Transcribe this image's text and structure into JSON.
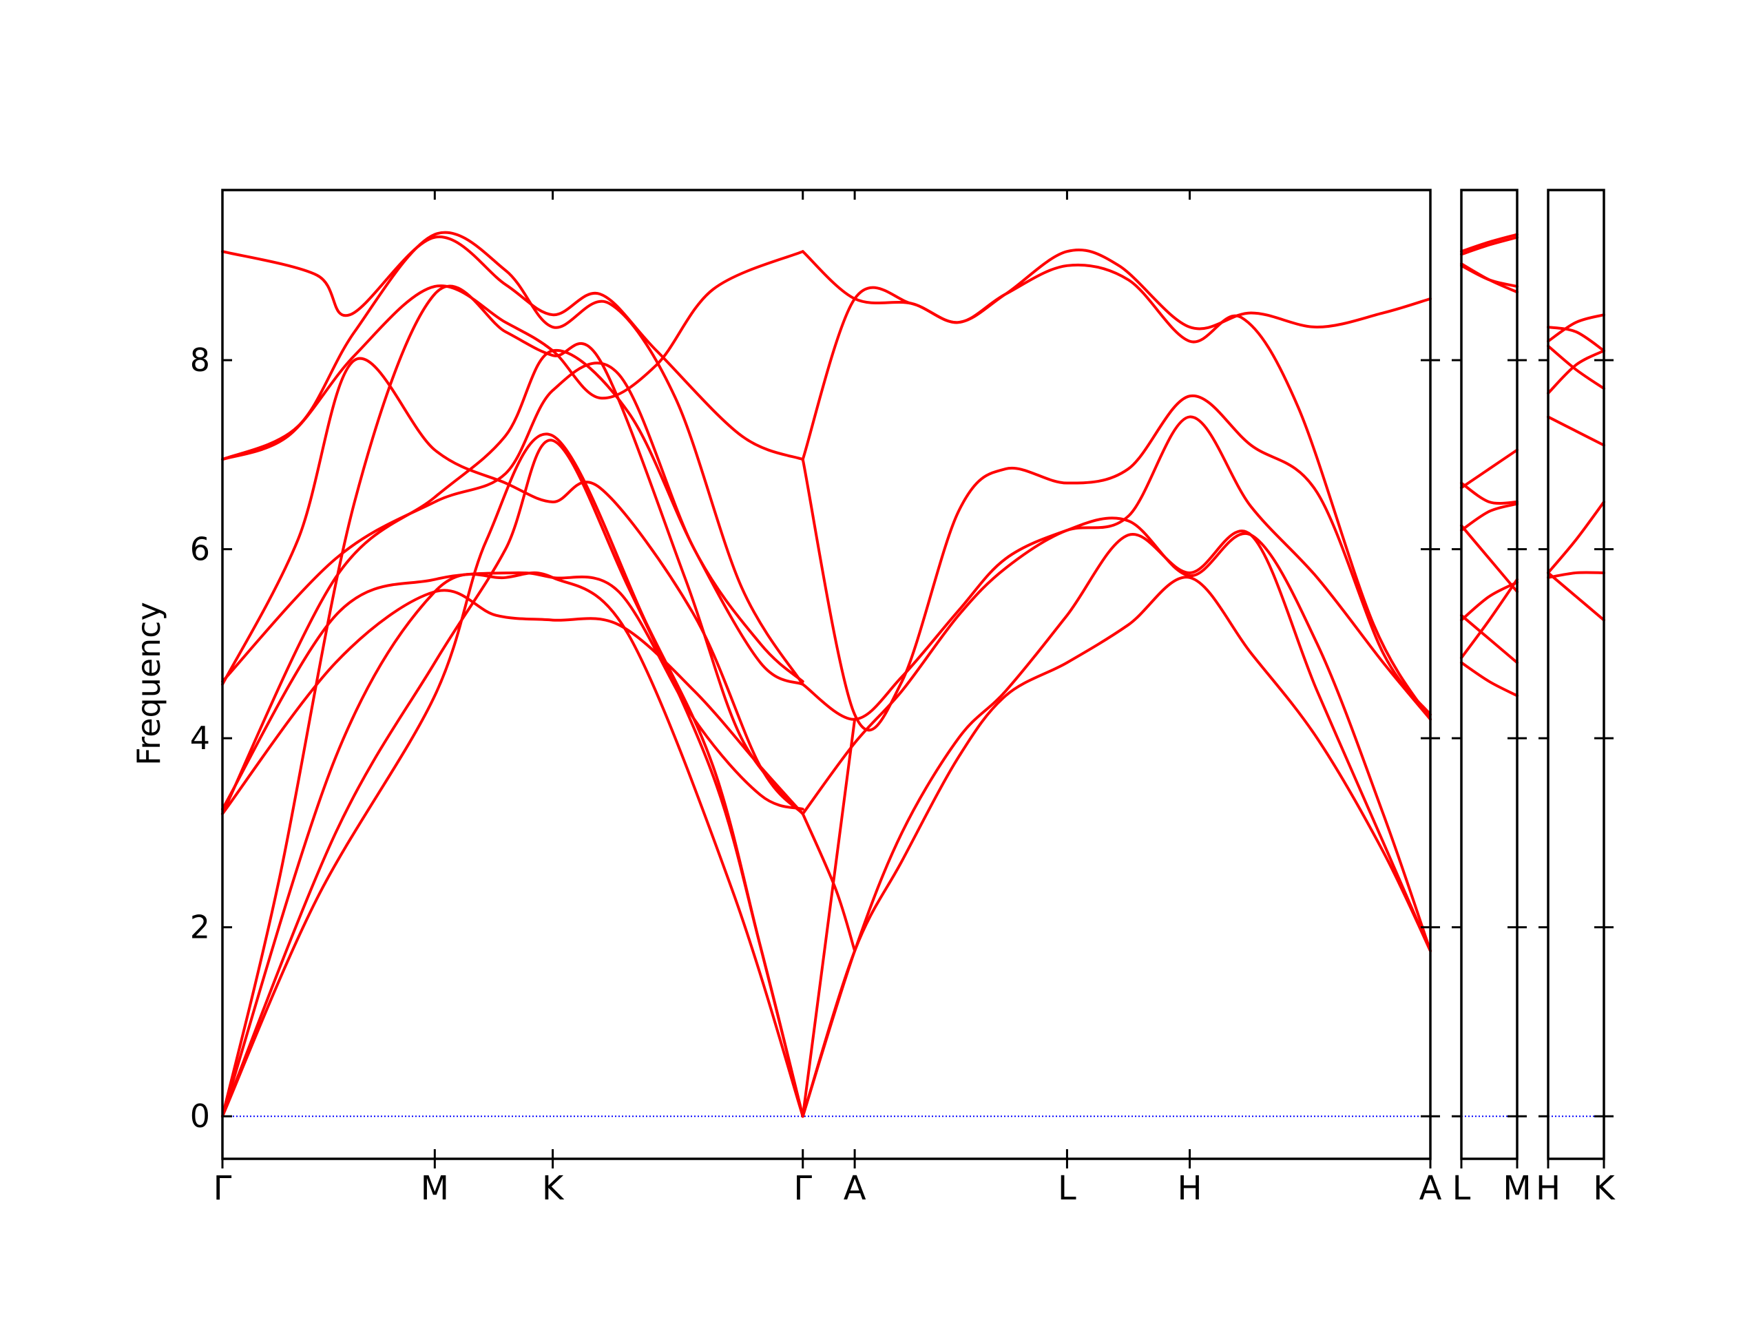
{
  "chart_data": {
    "type": "line",
    "title": "",
    "ylabel": "Frequency",
    "xlabel": "",
    "ylim": [
      -0.45,
      9.8
    ],
    "yticks": [
      0,
      2,
      4,
      6,
      8
    ],
    "grid": false,
    "legend": "none",
    "colors": {
      "bands": "#ff0000",
      "zero_line": "#0000ff",
      "axes": "#000000"
    },
    "panels": [
      {
        "xlim": [
          0,
          12.8
        ],
        "xtick_positions": [
          0,
          2.25,
          3.5,
          6.15,
          6.7,
          8.95,
          10.25,
          12.8
        ],
        "xtick_labels": [
          "Γ",
          "M",
          "K",
          "Γ",
          "A",
          "L",
          "H",
          "A"
        ],
        "series": [
          {
            "x": [
              0,
              1,
              2.25,
              2.8,
              3.5,
              4.5,
              5.2,
              5.7,
              6.15
            ],
            "values": [
              0,
              2.3,
              4.45,
              6.1,
              7.2,
              5.2,
              3.7,
              1.8,
              0
            ]
          },
          {
            "x": [
              0,
              1.2,
              2.25,
              3.0,
              3.5,
              4.3,
              5.2,
              5.7,
              6.15
            ],
            "values": [
              0,
              3.0,
              4.8,
              6.0,
              7.15,
              5.6,
              3.6,
              1.8,
              0
            ]
          },
          {
            "x": [
              0,
              1.2,
              2.25,
              3.0,
              3.5,
              4.3,
              5.4,
              6.15
            ],
            "values": [
              0,
              3.8,
              5.55,
              5.7,
              5.7,
              5.1,
              2.4,
              0
            ]
          },
          {
            "x": [
              0,
              1.2,
              2.25,
              2.9,
              3.5,
              4.2,
              5.0,
              5.7,
              6.15
            ],
            "values": [
              3.2,
              4.8,
              5.55,
              5.3,
              5.25,
              5.2,
              4.5,
              3.7,
              3.2
            ]
          },
          {
            "x": [
              0,
              1.2,
              2.25,
              3.1,
              3.5,
              4.2,
              5.0,
              5.7,
              6.15
            ],
            "values": [
              3.25,
              5.3,
              5.68,
              5.75,
              5.7,
              5.55,
              4.2,
              3.4,
              3.25
            ]
          },
          {
            "x": [
              0,
              1.2,
              2.25,
              3.0,
              3.5,
              4.2,
              5.0,
              5.7,
              6.15
            ],
            "values": [
              4.6,
              5.9,
              6.5,
              6.8,
              7.68,
              7.85,
              6.0,
              5.0,
              4.6
            ]
          },
          {
            "x": [
              0,
              1.2,
              2.25,
              3.0,
              3.5,
              4.3,
              5.0,
              5.7,
              6.15
            ],
            "values": [
              3.2,
              5.7,
              6.55,
              7.2,
              8.1,
              7.45,
              6.0,
              4.8,
              4.57
            ]
          },
          {
            "x": [
              0,
              0.8,
              1.4,
              2.25,
              3.0,
              3.5,
              4.0,
              5.0,
              5.7,
              6.15
            ],
            "values": [
              4.57,
              6.1,
              8.0,
              7.05,
              6.7,
              6.5,
              6.65,
              5.3,
              3.7,
              3.2
            ]
          },
          {
            "x": [
              0,
              0.6,
              1.4,
              2.25,
              3.0,
              3.5,
              4.0,
              4.9,
              5.5,
              6.15
            ],
            "values": [
              0,
              2.5,
              6.5,
              8.7,
              8.3,
              8.05,
              8.0,
              5.7,
              4.0,
              3.2
            ]
          },
          {
            "x": [
              0,
              0.7,
              1.4,
              2.25,
              3.0,
              3.5,
              4.0,
              4.6,
              5.2,
              6.15
            ],
            "values": [
              6.95,
              7.2,
              8.05,
              8.78,
              8.4,
              8.1,
              7.6,
              7.95,
              8.75,
              9.15
            ]
          },
          {
            "x": [
              0,
              1.0,
              1.35,
              2.25,
              3.0,
              3.5,
              4.0,
              4.6,
              5.5,
              6.15
            ],
            "values": [
              9.15,
              8.9,
              8.48,
              9.3,
              8.8,
              8.48,
              8.7,
              8.1,
              7.2,
              6.95
            ]
          },
          {
            "x": [
              0,
              0.8,
              1.4,
              2.25,
              3.0,
              3.5,
              4.1,
              4.8,
              5.5,
              6.15
            ],
            "values": [
              6.95,
              7.3,
              8.3,
              9.33,
              8.95,
              8.35,
              8.6,
              7.6,
              5.6,
              4.57
            ]
          },
          {
            "x": [
              6.15,
              6.7,
              7.3,
              7.8,
              8.3,
              8.95,
              9.5,
              10.25,
              10.9,
              11.6,
              12.3,
              12.8
            ],
            "values": [
              9.15,
              8.65,
              8.6,
              8.4,
              8.7,
              9.15,
              9.0,
              8.35,
              8.5,
              8.35,
              8.5,
              8.65
            ]
          },
          {
            "x": [
              6.15,
              6.7,
              7.3,
              7.8,
              8.3,
              8.95,
              9.6,
              10.25,
              10.8,
              11.4,
              12.2,
              12.8
            ],
            "values": [
              6.95,
              8.65,
              8.6,
              8.4,
              8.7,
              9.0,
              8.85,
              8.2,
              8.45,
              7.5,
              5.2,
              4.2
            ]
          },
          {
            "x": [
              6.15,
              6.7,
              7.2,
              7.8,
              8.3,
              8.95,
              9.6,
              10.25,
              10.9,
              11.6,
              12.3,
              12.8
            ],
            "values": [
              6.95,
              4.25,
              4.6,
              6.4,
              6.85,
              6.7,
              6.85,
              7.62,
              7.1,
              6.6,
              4.9,
              4.25
            ]
          },
          {
            "x": [
              6.15,
              6.7,
              7.2,
              7.8,
              8.3,
              8.95,
              9.6,
              10.25,
              10.9,
              11.6,
              12.3,
              12.8
            ],
            "values": [
              4.57,
              4.2,
              4.65,
              5.35,
              5.9,
              6.2,
              6.35,
              7.4,
              6.45,
              5.7,
              4.8,
              4.2
            ]
          },
          {
            "x": [
              6.15,
              6.7,
              7.2,
              7.8,
              8.3,
              8.95,
              9.6,
              10.25,
              10.9,
              11.6,
              12.3,
              12.8
            ],
            "values": [
              3.2,
              3.95,
              4.5,
              5.3,
              5.8,
              6.2,
              6.3,
              5.72,
              6.15,
              5.0,
              3.2,
              1.75
            ]
          },
          {
            "x": [
              6.15,
              6.7,
              7.2,
              7.8,
              8.3,
              8.95,
              9.6,
              10.25,
              10.9,
              11.6,
              12.3,
              12.8
            ],
            "values": [
              0,
              1.75,
              3.0,
              4.0,
              4.5,
              5.3,
              6.15,
              5.75,
              6.15,
              4.5,
              2.9,
              1.75
            ]
          },
          {
            "x": [
              6.15,
              6.7,
              7.2,
              7.8,
              8.3,
              8.95,
              9.6,
              10.25,
              10.9,
              11.6,
              12.3,
              12.8
            ],
            "values": [
              0,
              1.75,
              2.7,
              3.8,
              4.45,
              4.8,
              5.2,
              5.7,
              4.9,
              4.0,
              2.8,
              1.75
            ]
          },
          {
            "x": [
              6.15,
              6.5,
              6.7
            ],
            "values": [
              3.2,
              2.4,
              1.75
            ]
          },
          {
            "x": [
              6.15,
              6.7
            ],
            "values": [
              0,
              4.2
            ]
          }
        ]
      },
      {
        "xlim": [
          0,
          1
        ],
        "xtick_positions": [
          0,
          1
        ],
        "xtick_labels": [
          "L",
          "M"
        ],
        "series": [
          {
            "x": [
              0,
              0.5,
              1
            ],
            "values": [
              9.15,
              9.25,
              9.33
            ]
          },
          {
            "x": [
              0,
              0.5,
              1
            ],
            "values": [
              9.12,
              9.22,
              9.3
            ]
          },
          {
            "x": [
              0,
              0.5,
              1
            ],
            "values": [
              9.0,
              8.85,
              8.78
            ]
          },
          {
            "x": [
              0,
              0.5,
              1
            ],
            "values": [
              9.02,
              8.85,
              8.72
            ]
          },
          {
            "x": [
              0,
              0.5,
              1
            ],
            "values": [
              6.65,
              6.85,
              7.05
            ]
          },
          {
            "x": [
              0,
              0.5,
              1
            ],
            "values": [
              6.7,
              6.5,
              6.5
            ]
          },
          {
            "x": [
              0,
              0.5,
              1
            ],
            "values": [
              6.2,
              6.4,
              6.48
            ]
          },
          {
            "x": [
              0,
              0.5,
              1
            ],
            "values": [
              6.25,
              5.9,
              5.55
            ]
          },
          {
            "x": [
              0,
              0.5,
              1
            ],
            "values": [
              5.3,
              5.05,
              4.8
            ]
          },
          {
            "x": [
              0,
              0.5,
              1
            ],
            "values": [
              5.25,
              5.5,
              5.65
            ]
          },
          {
            "x": [
              0,
              0.5,
              1
            ],
            "values": [
              4.8,
              4.6,
              4.45
            ]
          },
          {
            "x": [
              0,
              0.5,
              1
            ],
            "values": [
              4.85,
              5.25,
              5.68
            ]
          }
        ]
      },
      {
        "xlim": [
          0,
          1
        ],
        "xtick_positions": [
          0,
          1
        ],
        "xtick_labels": [
          "H",
          "K"
        ],
        "series": [
          {
            "x": [
              0,
              0.5,
              1
            ],
            "values": [
              8.35,
              8.3,
              8.1
            ]
          },
          {
            "x": [
              0,
              0.5,
              1
            ],
            "values": [
              8.2,
              8.4,
              8.48
            ]
          },
          {
            "x": [
              0,
              0.5,
              1
            ],
            "values": [
              8.15,
              7.9,
              7.7
            ]
          },
          {
            "x": [
              0,
              0.5,
              1
            ],
            "values": [
              7.65,
              7.95,
              8.1
            ]
          },
          {
            "x": [
              0,
              0.5,
              1
            ],
            "values": [
              7.4,
              7.25,
              7.1
            ]
          },
          {
            "x": [
              0,
              0.5,
              1
            ],
            "values": [
              5.75,
              6.1,
              6.5
            ]
          },
          {
            "x": [
              0,
              0.5,
              1
            ],
            "values": [
              5.7,
              5.75,
              5.75
            ]
          },
          {
            "x": [
              0,
              0.5,
              1
            ],
            "values": [
              5.75,
              5.5,
              5.25
            ]
          }
        ]
      }
    ]
  }
}
